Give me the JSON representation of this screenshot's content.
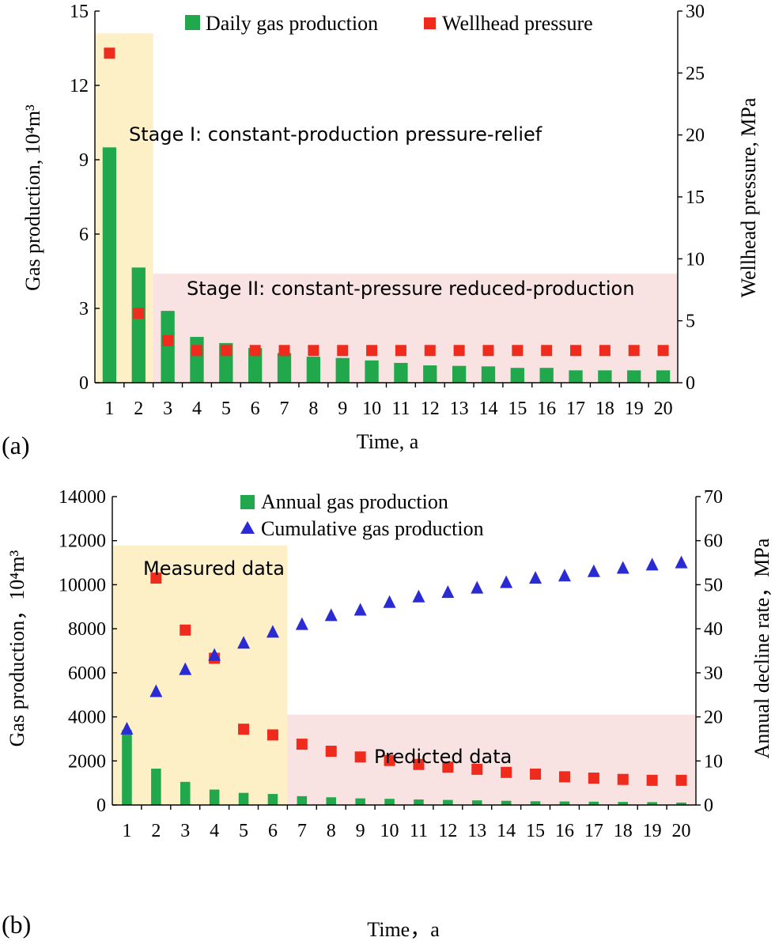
{
  "colors": {
    "bar_green": "#21a84c",
    "square_red": "#ee2b1c",
    "triangle_blue": "#2b2bd4",
    "stage1_fill": "#fdf0c6",
    "stage2_fill": "#f9e2e2"
  },
  "chart_data": [
    {
      "panel_label": "(a)",
      "type": "bar",
      "categories": [
        "1",
        "2",
        "3",
        "4",
        "5",
        "6",
        "7",
        "8",
        "9",
        "10",
        "11",
        "12",
        "13",
        "14",
        "15",
        "16",
        "17",
        "18",
        "19",
        "20"
      ],
      "xlabel": "Time, a",
      "ylabel_left": "Gas production, 10⁴m³",
      "ylabel_right": "Wellhead pressure, MPa",
      "ylim_left": [
        0,
        15
      ],
      "yticks_left": [
        "0",
        "3",
        "6",
        "9",
        "12",
        "15"
      ],
      "ylim_right": [
        0,
        30
      ],
      "yticks_right": [
        "0",
        "5",
        "10",
        "15",
        "20",
        "25",
        "30"
      ],
      "legend": [
        "Daily gas production",
        "Wellhead pressure"
      ],
      "series": [
        {
          "name": "Daily gas production",
          "axis": "left",
          "kind": "bar",
          "values": [
            9.5,
            4.65,
            2.9,
            1.85,
            1.6,
            1.4,
            1.2,
            1.05,
            1.0,
            0.9,
            0.8,
            0.7,
            0.68,
            0.66,
            0.6,
            0.6,
            0.5,
            0.5,
            0.5,
            0.5
          ]
        },
        {
          "name": "Wellhead pressure",
          "axis": "right",
          "kind": "square",
          "values": [
            26.6,
            5.6,
            3.4,
            2.6,
            2.6,
            2.6,
            2.6,
            2.6,
            2.6,
            2.6,
            2.6,
            2.6,
            2.6,
            2.6,
            2.6,
            2.6,
            2.6,
            2.6,
            2.6,
            2.6
          ]
        }
      ],
      "regions": [
        {
          "label": "Stage I: constant-production pressure-relief",
          "from_category": 1,
          "to_category": 2,
          "top_right_axis": 28.2
        },
        {
          "label": "Stage II: constant-pressure reduced-production",
          "from_category": 3,
          "to_category": 20,
          "top_right_axis": 8.8
        }
      ]
    },
    {
      "panel_label": "(b)",
      "type": "bar",
      "categories": [
        "1",
        "2",
        "3",
        "4",
        "5",
        "6",
        "7",
        "8",
        "9",
        "10",
        "11",
        "12",
        "13",
        "14",
        "15",
        "16",
        "17",
        "18",
        "19",
        "20"
      ],
      "xlabel": "Time，a",
      "ylabel_left": "Gas production，10⁴m³",
      "ylabel_right": "Annual decline rate，MPa",
      "ylim_left": [
        0,
        14000
      ],
      "yticks_left": [
        "0",
        "2000",
        "4000",
        "6000",
        "8000",
        "10000",
        "12000",
        "14000"
      ],
      "ylim_right": [
        0,
        70
      ],
      "yticks_right": [
        "0",
        "10",
        "20",
        "30",
        "40",
        "50",
        "60",
        "70"
      ],
      "legend": [
        "Annual gas production",
        "Cumulative gas production"
      ],
      "series": [
        {
          "name": "Annual gas production",
          "axis": "left",
          "kind": "bar",
          "values": [
            3400,
            1650,
            1050,
            700,
            550,
            500,
            400,
            350,
            300,
            280,
            250,
            230,
            210,
            190,
            170,
            160,
            150,
            140,
            130,
            110
          ]
        },
        {
          "name": "Cumulative gas production",
          "axis": "left",
          "kind": "triangle",
          "values": [
            3450,
            5150,
            6150,
            6800,
            7350,
            7850,
            8200,
            8600,
            8850,
            9200,
            9450,
            9650,
            9850,
            10100,
            10300,
            10400,
            10600,
            10750,
            10900,
            11000
          ]
        },
        {
          "name": "Annual decline rate",
          "axis": "right",
          "kind": "square",
          "values": [
            null,
            51.5,
            39.7,
            33.3,
            17.2,
            15.9,
            13.8,
            12.2,
            10.9,
            10.1,
            9.2,
            8.6,
            8.1,
            7.4,
            7.0,
            6.4,
            6.1,
            5.8,
            5.6,
            5.6
          ]
        }
      ],
      "regions": [
        {
          "label": "Measured data",
          "from_category": 1,
          "to_category": 6,
          "top_left_axis": 11780
        },
        {
          "label": "Predicted data",
          "from_category": 7,
          "to_category": 20,
          "top_left_axis": 4100
        }
      ]
    }
  ]
}
